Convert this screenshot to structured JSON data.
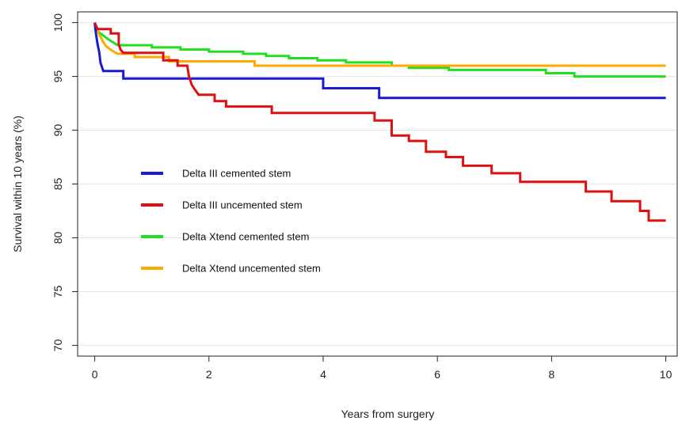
{
  "chart_data": {
    "type": "line",
    "xlabel": "Years from surgery",
    "ylabel": "Survival within 10 years (%)",
    "xlim": [
      -0.3,
      10.2
    ],
    "ylim": [
      69,
      101
    ],
    "x_ticks": [
      0,
      2,
      4,
      6,
      8,
      10
    ],
    "y_ticks": [
      70,
      75,
      80,
      85,
      90,
      95,
      100
    ],
    "grid": "horizontal",
    "legend_position": "center-left",
    "series": [
      {
        "name": "Delta III cemented stem",
        "color": "#1a1ad6",
        "points": [
          [
            0,
            100
          ],
          [
            0.02,
            99
          ],
          [
            0.05,
            98
          ],
          [
            0.08,
            97.2
          ],
          [
            0.1,
            96.3
          ],
          [
            0.15,
            95.5
          ],
          [
            0.5,
            95.5
          ],
          [
            0.5,
            94.8
          ],
          [
            4.0,
            94.8
          ],
          [
            4.0,
            93.9
          ],
          [
            4.98,
            93.9
          ],
          [
            4.98,
            93.0
          ],
          [
            10.0,
            93.0
          ]
        ]
      },
      {
        "name": "Delta III uncemented stem",
        "color": "#dd1111",
        "points": [
          [
            0,
            100
          ],
          [
            0.05,
            99.4
          ],
          [
            0.28,
            99.4
          ],
          [
            0.28,
            99.0
          ],
          [
            0.42,
            99.0
          ],
          [
            0.42,
            98.0
          ],
          [
            0.45,
            97.5
          ],
          [
            0.5,
            97.2
          ],
          [
            1.2,
            97.2
          ],
          [
            1.2,
            96.5
          ],
          [
            1.45,
            96.5
          ],
          [
            1.45,
            96.0
          ],
          [
            1.62,
            96.0
          ],
          [
            1.65,
            95.0
          ],
          [
            1.7,
            94.2
          ],
          [
            1.75,
            93.8
          ],
          [
            1.82,
            93.3
          ],
          [
            2.1,
            93.3
          ],
          [
            2.1,
            92.7
          ],
          [
            2.3,
            92.7
          ],
          [
            2.3,
            92.2
          ],
          [
            3.1,
            92.2
          ],
          [
            3.1,
            91.6
          ],
          [
            4.9,
            91.6
          ],
          [
            4.9,
            90.9
          ],
          [
            5.2,
            90.9
          ],
          [
            5.2,
            89.5
          ],
          [
            5.5,
            89.5
          ],
          [
            5.5,
            89.0
          ],
          [
            5.8,
            89.0
          ],
          [
            5.8,
            88.0
          ],
          [
            6.15,
            88.0
          ],
          [
            6.15,
            87.5
          ],
          [
            6.45,
            87.5
          ],
          [
            6.45,
            86.7
          ],
          [
            6.95,
            86.7
          ],
          [
            6.95,
            86.0
          ],
          [
            7.45,
            86.0
          ],
          [
            7.45,
            85.2
          ],
          [
            8.6,
            85.2
          ],
          [
            8.6,
            84.3
          ],
          [
            9.05,
            84.3
          ],
          [
            9.05,
            83.4
          ],
          [
            9.55,
            83.4
          ],
          [
            9.55,
            82.5
          ],
          [
            9.7,
            82.5
          ],
          [
            9.7,
            81.6
          ],
          [
            10.0,
            81.6
          ]
        ]
      },
      {
        "name": "Delta Xtend cemented stem",
        "color": "#22dd22",
        "points": [
          [
            0,
            100
          ],
          [
            0.05,
            99.2
          ],
          [
            0.15,
            98.8
          ],
          [
            0.25,
            98.4
          ],
          [
            0.4,
            97.9
          ],
          [
            1.0,
            97.9
          ],
          [
            1.0,
            97.7
          ],
          [
            1.5,
            97.7
          ],
          [
            1.5,
            97.5
          ],
          [
            2.0,
            97.5
          ],
          [
            2.0,
            97.3
          ],
          [
            2.6,
            97.3
          ],
          [
            2.6,
            97.1
          ],
          [
            3.0,
            97.1
          ],
          [
            3.0,
            96.9
          ],
          [
            3.4,
            96.9
          ],
          [
            3.4,
            96.7
          ],
          [
            3.9,
            96.7
          ],
          [
            3.9,
            96.5
          ],
          [
            4.4,
            96.5
          ],
          [
            4.4,
            96.3
          ],
          [
            5.2,
            96.3
          ],
          [
            5.2,
            96.0
          ],
          [
            5.5,
            96.0
          ],
          [
            5.5,
            95.8
          ],
          [
            6.2,
            95.8
          ],
          [
            6.2,
            95.6
          ],
          [
            7.9,
            95.6
          ],
          [
            7.9,
            95.3
          ],
          [
            8.4,
            95.3
          ],
          [
            8.4,
            95.0
          ],
          [
            10.0,
            95.0
          ]
        ]
      },
      {
        "name": "Delta Xtend uncemented stem",
        "color": "#ffaa00",
        "points": [
          [
            0,
            100
          ],
          [
            0.05,
            99.2
          ],
          [
            0.1,
            98.7
          ],
          [
            0.15,
            98.2
          ],
          [
            0.2,
            97.8
          ],
          [
            0.3,
            97.4
          ],
          [
            0.4,
            97.1
          ],
          [
            0.7,
            97.1
          ],
          [
            0.7,
            96.8
          ],
          [
            1.3,
            96.8
          ],
          [
            1.3,
            96.4
          ],
          [
            2.8,
            96.4
          ],
          [
            2.8,
            96.0
          ],
          [
            10.0,
            96.0
          ]
        ]
      }
    ]
  }
}
